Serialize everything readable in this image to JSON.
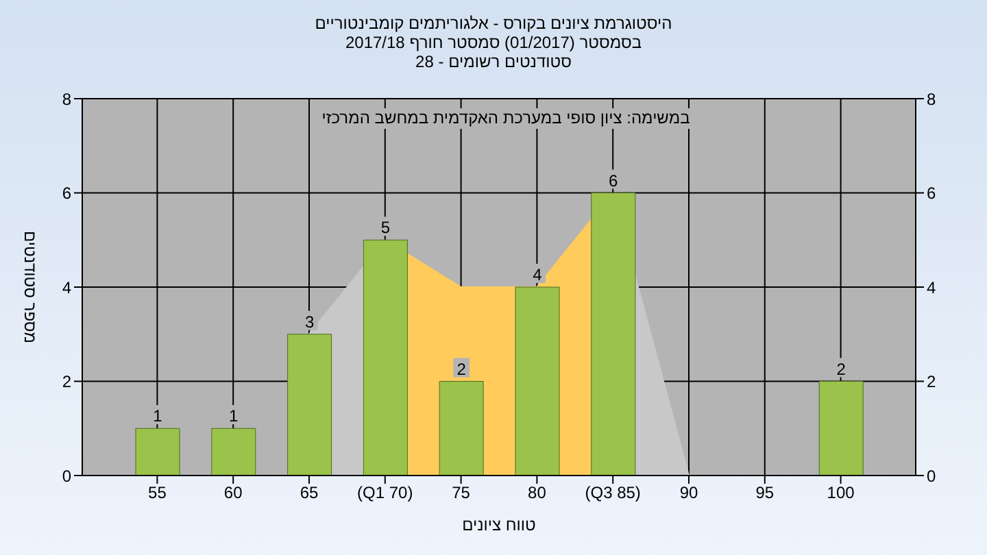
{
  "chart_data": {
    "type": "bar",
    "title": "היסטוגרמת ציונים בקורס - אלגוריתמים קומבינטוריים",
    "subtitle": "בסמסטר  (01/2017)  סמסטר חורף 2017/18\nסטודנטים רשומים - 28",
    "xlabel": "טווח ציונים",
    "ylabel": "מספר סטודנטים",
    "annotations": [
      "במשימה: ציון סופי במערכת האקדמית במחשב המרכזי"
    ],
    "categories": [
      "55",
      "60",
      "65",
      "(Q1 70)",
      "75",
      "80",
      "(Q3 85)",
      "90",
      "95",
      "100"
    ],
    "series": [
      {
        "type": "area",
        "color": "#c8c8c8",
        "values": [
          null,
          null,
          3,
          5,
          null,
          null,
          6,
          0,
          null,
          null
        ]
      },
      {
        "type": "area",
        "color": "#ffcc5c",
        "values": [
          null,
          null,
          null,
          5,
          4,
          4,
          6,
          null,
          null,
          null
        ]
      },
      {
        "color": "#9bc24a",
        "values": [
          1,
          1,
          3,
          5,
          2,
          4,
          6,
          0,
          0,
          2
        ],
        "value_labels": [
          "1",
          "1",
          "3",
          "5",
          "2",
          "4",
          "6",
          null,
          null,
          "2"
        ]
      }
    ],
    "ylim": [
      0,
      8
    ],
    "yticks": [
      0,
      2,
      4,
      6,
      8
    ],
    "y2lim": [
      0,
      8
    ],
    "y2ticks": [
      0,
      2,
      4,
      6,
      8
    ],
    "grid": true
  }
}
